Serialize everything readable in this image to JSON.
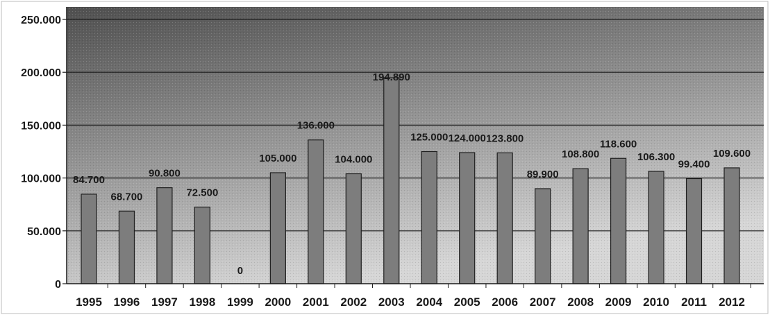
{
  "chart_data": {
    "type": "bar",
    "title": "",
    "xlabel": "",
    "ylabel": "",
    "ylim": [
      0,
      250000
    ],
    "yticks": [
      0,
      50000,
      100000,
      150000,
      200000,
      250000
    ],
    "ytick_labels": [
      "0",
      "50.000",
      "100.000",
      "150.000",
      "200.000",
      "250.000"
    ],
    "grid": true,
    "legend": "none",
    "categories": [
      "1995",
      "1996",
      "1997",
      "1998",
      "1999",
      "2000",
      "2001",
      "2002",
      "2003",
      "2004",
      "2005",
      "2006",
      "2007",
      "2008",
      "2009",
      "2010",
      "2011",
      "2012"
    ],
    "values": [
      84700,
      68700,
      90800,
      72500,
      0,
      105000,
      136000,
      104000,
      194890,
      125000,
      124000,
      123800,
      89900,
      108800,
      118600,
      106300,
      99400,
      109600
    ],
    "value_labels": [
      "84.700",
      "68.700",
      "90.800",
      "72.500",
      "0",
      "105.000",
      "136.000",
      "104.000",
      "194.890",
      "125.000",
      "124.000",
      "123.800",
      "89.900",
      "108.800",
      "118.600",
      "106.300",
      "99.400",
      "109.600"
    ],
    "colors": {
      "bar": "#7d7d7d",
      "bar_stroke": "#1e1e1e",
      "gridline": "#1a1a1a",
      "plot_top": "#4f4f4f",
      "plot_bottom": "#d6d6d6",
      "text": "#1a1a1a"
    }
  }
}
